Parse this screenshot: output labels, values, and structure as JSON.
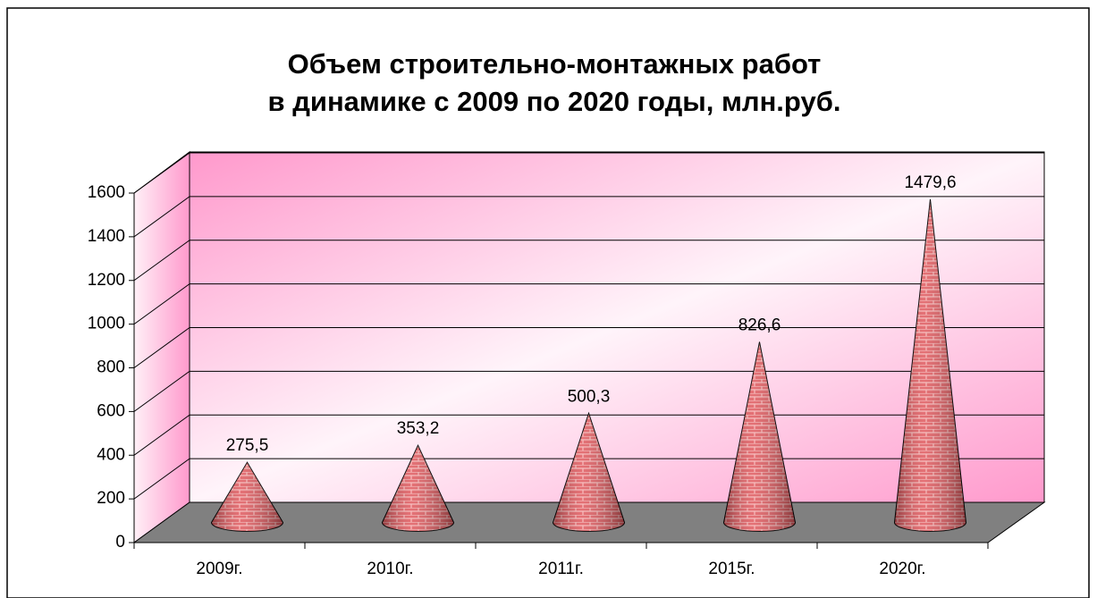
{
  "chart_data": {
    "type": "cone3d",
    "title": [
      "Объем строительно-монтажных работ",
      "в динамике с 2009 по 2020 годы, млн.руб."
    ],
    "categories": [
      "2009г.",
      "2010г.",
      "2011г.",
      "2015г.",
      "2020г."
    ],
    "values": [
      275.5,
      353.2,
      500.3,
      826.6,
      1479.6
    ],
    "value_labels": [
      "275,5",
      "353,2",
      "500,3",
      "826,6",
      "1479,6"
    ],
    "color": "#d9534f",
    "ylim": [
      0,
      1600
    ],
    "yticks": [
      0,
      200,
      400,
      600,
      800,
      1000,
      1200,
      1400,
      1600
    ],
    "grid": true
  }
}
